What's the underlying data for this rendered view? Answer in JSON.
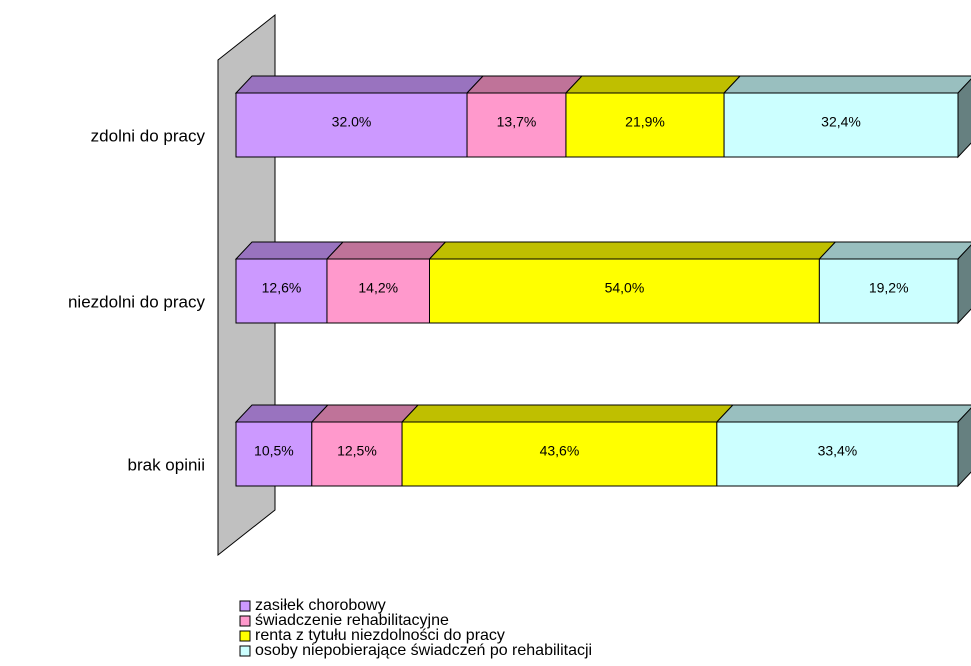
{
  "chart_data": {
    "type": "stacked-bar-3d",
    "categories": [
      "zdolni do pracy",
      "niezdolni do pracy",
      "brak opinii"
    ],
    "xlim": [
      0,
      100
    ],
    "series": [
      {
        "name": "zasiłek chorobowy",
        "color": "#cc99ff",
        "values": [
          32.0,
          12.6,
          10.5
        ],
        "value_labels": [
          "32.0%",
          "12,6%",
          "10,5%"
        ]
      },
      {
        "name": "świadczenie rehabilitacyjne",
        "color": "#ff99cc",
        "values": [
          13.7,
          14.2,
          12.5
        ],
        "value_labels": [
          "13,7%",
          "14,2%",
          "12,5%"
        ]
      },
      {
        "name": "renta z tytułu niezdolności do pracy",
        "color": "#ffff00",
        "values": [
          21.9,
          54.0,
          43.6
        ],
        "value_labels": [
          "21,9%",
          "54,0%",
          "43,6%"
        ]
      },
      {
        "name": "osoby niepobierające świadczeń po rehabilitacji",
        "color": "#ccffff",
        "values": [
          32.4,
          19.2,
          33.4
        ],
        "value_labels": [
          "32,4%",
          "19,2%",
          "33,4%"
        ]
      }
    ],
    "legend": "bottom"
  }
}
